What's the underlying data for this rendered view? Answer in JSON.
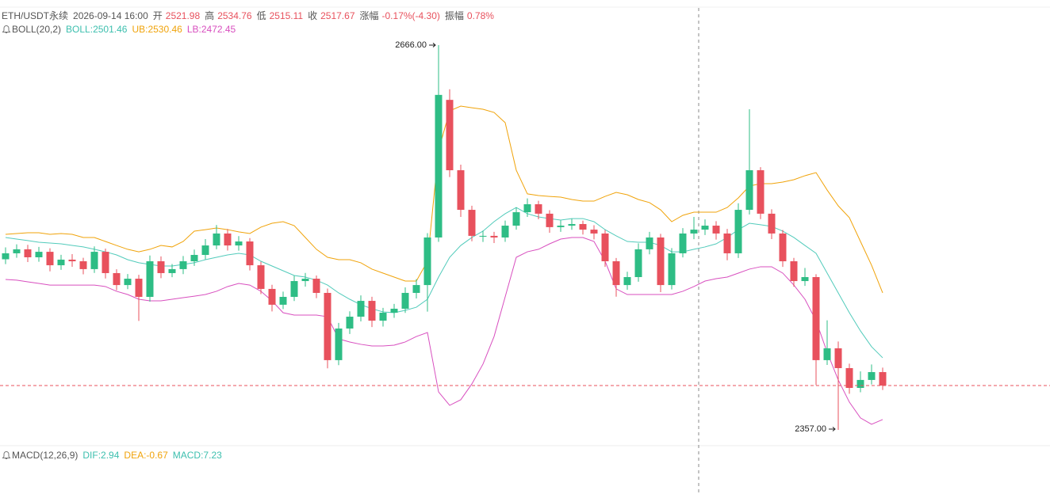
{
  "header": {
    "symbol": "ETH/USDT永续",
    "time": "2026-09-14 16:00",
    "fields": [
      {
        "label": "开",
        "value": "2521.98"
      },
      {
        "label": "高",
        "value": "2534.76"
      },
      {
        "label": "低",
        "value": "2515.11"
      },
      {
        "label": "收",
        "value": "2517.67"
      },
      {
        "label": "涨幅",
        "value": "-0.17%(-4.30)"
      },
      {
        "label": "振幅",
        "value": "0.78%"
      }
    ]
  },
  "boll_legend": {
    "name": "BOLL(20,2)",
    "items": [
      {
        "text": "BOLL:2501.46",
        "color": "#3cbfae"
      },
      {
        "text": "UB:2530.46",
        "color": "#f0a30a"
      },
      {
        "text": "LB:2472.45",
        "color": "#d84fbf"
      }
    ]
  },
  "macd_legend": {
    "name": "MACD(12,26,9)",
    "items": [
      {
        "text": "DIF:2.94",
        "color": "#3cbfae"
      },
      {
        "text": "DEA:-0.67",
        "color": "#f0a30a"
      },
      {
        "text": "MACD:7.23",
        "color": "#3cbfae"
      }
    ]
  },
  "chart_data": {
    "type": "candlestick",
    "ylim": [
      2346.2,
      2702.2
    ],
    "up_color": "#2ebd85",
    "down_color": "#e8515d",
    "last_price_line": true,
    "open": [
      2494.0,
      2498.8,
      2502.0,
      2495.6,
      2500.0,
      2489.2,
      2493.7,
      2492.4,
      2486.1,
      2500.0,
      2482.9,
      2473.3,
      2478.4,
      2463.8,
      2492.4,
      2482.9,
      2486.1,
      2492.4,
      2497.5,
      2505.1,
      2514.7,
      2505.1,
      2508.3,
      2489.2,
      2470.2,
      2457.5,
      2463.8,
      2476.5,
      2478.4,
      2467.0,
      2413.0,
      2438.4,
      2447.9,
      2460.6,
      2444.7,
      2451.1,
      2454.3,
      2467.0,
      2473.3,
      2511.5,
      2622.0,
      2565.5,
      2533.7,
      2512.8,
      2512.8,
      2511.5,
      2521.0,
      2531.8,
      2538.2,
      2530.6,
      2519.8,
      2521.0,
      2522.3,
      2517.8,
      2514.7,
      2492.4,
      2473.3,
      2479.7,
      2502.0,
      2511.5,
      2473.3,
      2498.8,
      2514.7,
      2517.8,
      2521.0,
      2514.7,
      2498.8,
      2533.7,
      2565.5,
      2530.6,
      2514.7,
      2492.4,
      2476.5,
      2479.7,
      2413.0,
      2422.5,
      2406.6,
      2390.7,
      2397.1,
      2403.4
    ],
    "high": [
      2503.5,
      2506.0,
      2505.6,
      2503.9,
      2502.8,
      2497.6,
      2498.1,
      2495.2,
      2504.3,
      2502.6,
      2486.0,
      2482.2,
      2481.5,
      2497.0,
      2496.3,
      2490.2,
      2496.6,
      2501.8,
      2510.2,
      2521.5,
      2518.3,
      2512.6,
      2511.0,
      2492.0,
      2473.5,
      2468.0,
      2480.7,
      2483.0,
      2481.0,
      2470.5,
      2442.9,
      2452.2,
      2465.0,
      2463.9,
      2455.0,
      2458.2,
      2471.4,
      2478.0,
      2515.0,
      2666.0,
      2630.5,
      2570.0,
      2537.0,
      2517.0,
      2516.0,
      2525.1,
      2535.6,
      2542.9,
      2541.0,
      2533.4,
      2525.2,
      2526.5,
      2525.0,
      2521.3,
      2517.5,
      2495.0,
      2484.0,
      2506.8,
      2516.0,
      2514.4,
      2503.0,
      2519.0,
      2528.0,
      2526.0,
      2524.6,
      2518.4,
      2539.0,
      2614.5,
      2568.0,
      2534.1,
      2517.5,
      2495.1,
      2487.0,
      2482.0,
      2445.0,
      2428.0,
      2410.2,
      2404.0,
      2409.5,
      2407.0
    ],
    "low": [
      2490.1,
      2495.2,
      2491.8,
      2492.0,
      2484.3,
      2485.5,
      2488.0,
      2481.9,
      2483.0,
      2478.6,
      2469.1,
      2470.0,
      2444.5,
      2460.0,
      2478.8,
      2479.6,
      2482.1,
      2488.7,
      2494.0,
      2502.0,
      2501.0,
      2500.9,
      2485.0,
      2466.0,
      2452.1,
      2454.0,
      2460.5,
      2472.1,
      2462.8,
      2406.4,
      2409.0,
      2434.0,
      2444.1,
      2439.6,
      2440.0,
      2447.0,
      2450.9,
      2462.5,
      2452.0,
      2508.0,
      2560.0,
      2528.0,
      2508.5,
      2507.9,
      2507.0,
      2508.0,
      2517.8,
      2528.0,
      2526.1,
      2515.3,
      2516.0,
      2517.7,
      2513.9,
      2510.0,
      2487.9,
      2464.0,
      2469.5,
      2476.0,
      2498.0,
      2467.6,
      2469.8,
      2495.5,
      2510.1,
      2513.5,
      2509.8,
      2493.2,
      2495.0,
      2530.0,
      2526.3,
      2510.2,
      2487.9,
      2472.0,
      2472.6,
      2393.0,
      2409.1,
      2357.0,
      2386.0,
      2387.2,
      2393.5,
      2389.0
    ],
    "close": [
      2498.8,
      2502.0,
      2495.6,
      2500.0,
      2489.2,
      2493.7,
      2492.4,
      2486.1,
      2500.0,
      2482.9,
      2473.3,
      2478.4,
      2463.8,
      2492.4,
      2482.9,
      2486.1,
      2492.4,
      2497.5,
      2505.1,
      2514.7,
      2505.1,
      2508.3,
      2489.2,
      2470.2,
      2457.5,
      2463.8,
      2476.5,
      2478.4,
      2467.0,
      2413.0,
      2438.4,
      2447.9,
      2460.6,
      2444.7,
      2451.1,
      2454.3,
      2467.0,
      2473.3,
      2511.5,
      2626.0,
      2565.5,
      2533.7,
      2512.8,
      2512.8,
      2511.5,
      2521.0,
      2531.8,
      2538.2,
      2530.6,
      2519.8,
      2521.0,
      2522.3,
      2517.8,
      2514.7,
      2492.4,
      2473.3,
      2479.7,
      2502.0,
      2511.5,
      2473.3,
      2498.8,
      2514.7,
      2517.8,
      2521.0,
      2514.7,
      2498.8,
      2533.7,
      2565.5,
      2530.6,
      2514.7,
      2492.4,
      2476.5,
      2479.7,
      2413.0,
      2422.5,
      2406.6,
      2390.7,
      2397.1,
      2403.4,
      2392.6
    ],
    "series": [
      {
        "color": "#f0a30a",
        "values": [
          2514.0,
          2514.7,
          2515.3,
          2515.3,
          2514.0,
          2514.7,
          2514.0,
          2511.5,
          2511.5,
          2508.3,
          2505.1,
          2502.0,
          2500.0,
          2502.0,
          2505.1,
          2503.9,
          2508.3,
          2516.6,
          2517.8,
          2519.1,
          2517.8,
          2516.0,
          2514.7,
          2519.8,
          2522.9,
          2524.2,
          2521.0,
          2511.5,
          2502.0,
          2495.6,
          2493.7,
          2493.7,
          2491.2,
          2486.1,
          2482.9,
          2479.7,
          2476.5,
          2476.5,
          2492.4,
          2581.4,
          2613.2,
          2617.0,
          2615.7,
          2614.5,
          2611.9,
          2603.7,
          2565.5,
          2546.5,
          2545.2,
          2544.5,
          2543.9,
          2542.0,
          2540.7,
          2540.7,
          2544.5,
          2547.7,
          2545.8,
          2542.0,
          2539.5,
          2533.7,
          2524.2,
          2529.3,
          2531.8,
          2531.8,
          2531.8,
          2535.6,
          2543.3,
          2552.8,
          2554.7,
          2554.7,
          2556.0,
          2557.9,
          2561.1,
          2563.6,
          2549.6,
          2536.9,
          2527.4,
          2508.3,
          2489.2,
          2467.0
        ]
      },
      {
        "color": "#52cbbb",
        "values": [
          2511.5,
          2510.2,
          2509.0,
          2507.7,
          2507.0,
          2506.4,
          2505.1,
          2503.9,
          2502.0,
          2500.0,
          2497.5,
          2493.7,
          2491.2,
          2489.9,
          2488.6,
          2488.6,
          2489.9,
          2491.2,
          2493.7,
          2495.6,
          2497.5,
          2498.8,
          2497.5,
          2492.4,
          2488.6,
          2484.8,
          2481.0,
          2479.7,
          2477.2,
          2473.3,
          2467.0,
          2461.9,
          2457.5,
          2454.3,
          2451.7,
          2451.1,
          2453.0,
          2455.5,
          2461.9,
          2479.7,
          2495.6,
          2505.1,
          2511.5,
          2516.6,
          2524.2,
          2530.6,
          2535.6,
          2530.6,
          2528.0,
          2526.7,
          2525.5,
          2526.7,
          2526.7,
          2524.2,
          2517.8,
          2512.8,
          2508.3,
          2507.7,
          2507.7,
          2505.1,
          2500.0,
          2500.0,
          2502.0,
          2503.9,
          2506.4,
          2511.5,
          2517.8,
          2522.9,
          2521.7,
          2520.4,
          2516.6,
          2511.5,
          2505.1,
          2498.8,
          2482.9,
          2467.0,
          2451.1,
          2436.5,
          2423.8,
          2414.9
        ]
      },
      {
        "color": "#d84fbf",
        "values": [
          2477.8,
          2477.2,
          2475.9,
          2474.6,
          2473.3,
          2473.3,
          2473.3,
          2473.3,
          2473.3,
          2472.1,
          2468.3,
          2465.7,
          2461.9,
          2460.6,
          2460.6,
          2461.9,
          2463.2,
          2464.4,
          2465.7,
          2468.3,
          2472.1,
          2474.6,
          2473.3,
          2468.3,
          2460.6,
          2451.1,
          2449.2,
          2449.2,
          2449.2,
          2447.9,
          2430.1,
          2427.6,
          2425.7,
          2424.4,
          2424.4,
          2425.0,
          2427.6,
          2432.0,
          2435.2,
          2387.5,
          2376.7,
          2381.2,
          2393.9,
          2409.8,
          2432.0,
          2463.8,
          2495.6,
          2500.0,
          2502.0,
          2506.4,
          2510.2,
          2511.5,
          2511.5,
          2508.3,
          2492.4,
          2470.2,
          2465.7,
          2465.7,
          2465.7,
          2465.7,
          2465.7,
          2468.3,
          2472.1,
          2476.5,
          2478.4,
          2479.7,
          2482.9,
          2486.1,
          2488.0,
          2488.0,
          2482.9,
          2473.3,
          2461.9,
          2444.7,
          2419.3,
          2397.1,
          2379.3,
          2366.6,
          2361.5,
          2365.3
        ]
      }
    ],
    "annotations": [
      {
        "text": "2666.00",
        "value": 2666.0
      },
      {
        "text": "2357.00",
        "value": 2357.0
      }
    ]
  }
}
